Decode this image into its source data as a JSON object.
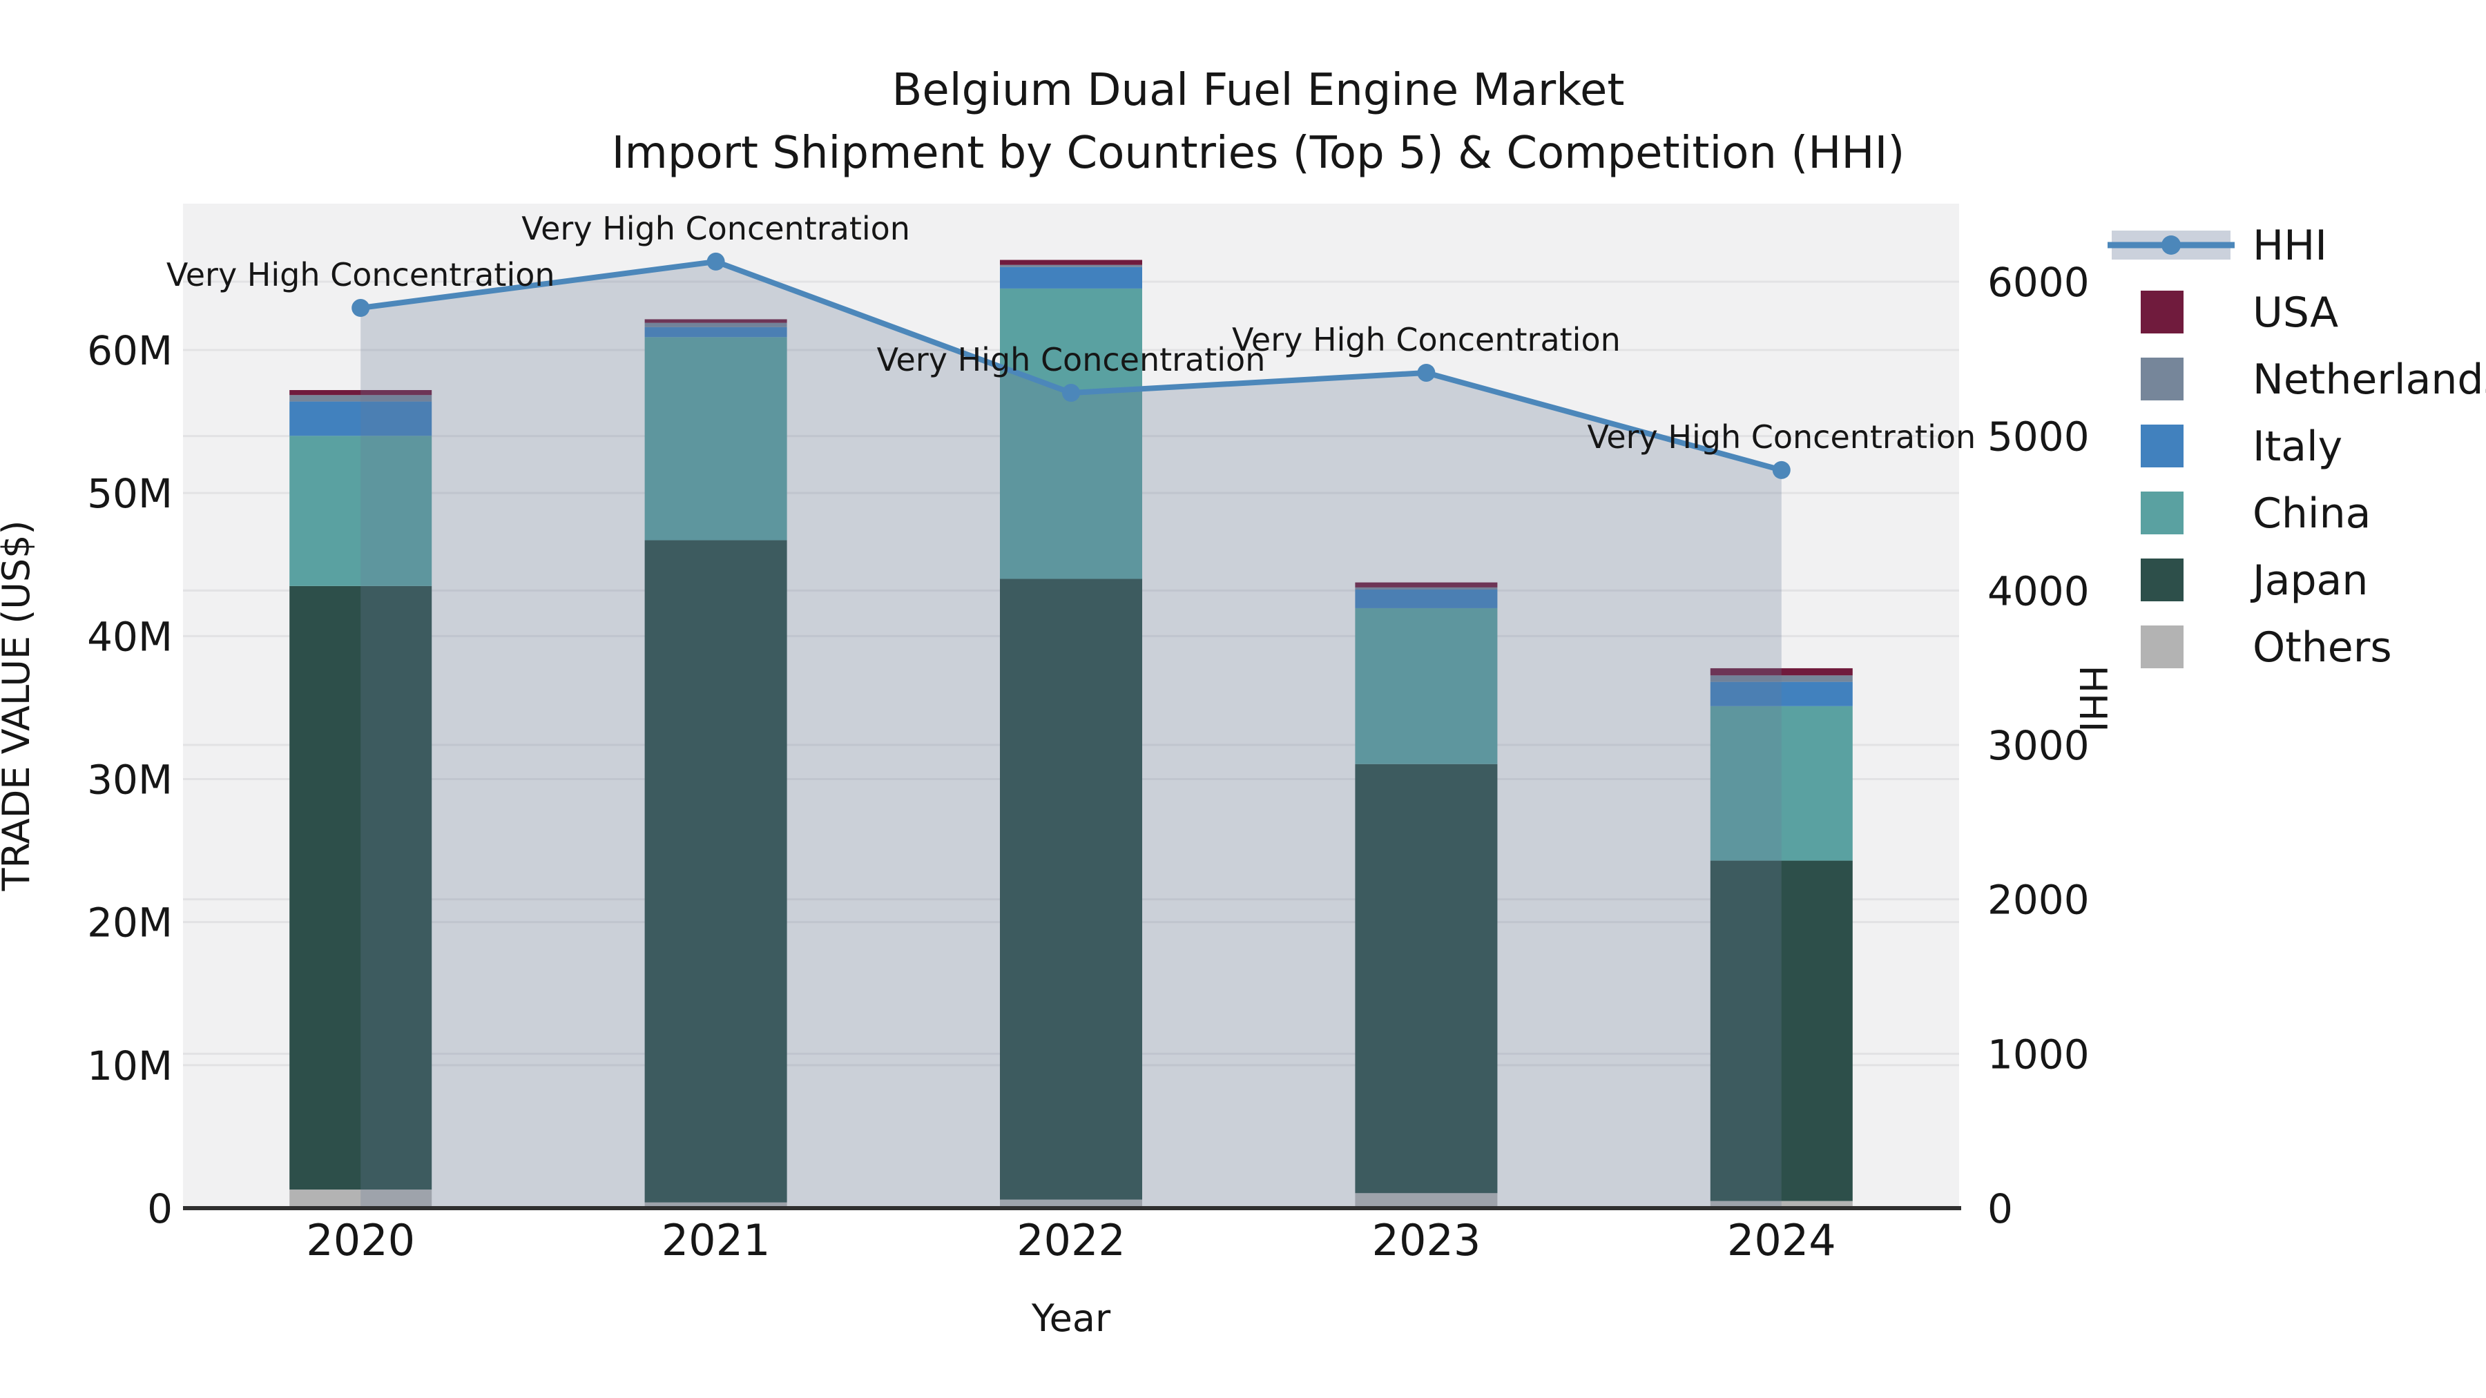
{
  "title": {
    "line1": "Belgium Dual Fuel Engine Market",
    "line2": "Import Shipment by Countries (Top 5) & Competition (HHI)"
  },
  "axes": {
    "y_left_label": "TRADE VALUE (US$)",
    "y_right_label": "HHI",
    "x_label": "Year",
    "y_left_tick_labels": [
      "0",
      "10M",
      "20M",
      "30M",
      "40M",
      "50M",
      "60M"
    ],
    "y_right_tick_labels": [
      "0",
      "1000",
      "2000",
      "3000",
      "4000",
      "5000",
      "6000"
    ],
    "x_tick_labels": [
      "2020",
      "2021",
      "2022",
      "2023",
      "2024"
    ]
  },
  "legend": {
    "items": [
      {
        "label": "HHI",
        "type": "line",
        "color": "#4c87ba"
      },
      {
        "label": "USA",
        "type": "swatch",
        "color": "#701b3d"
      },
      {
        "label": "Netherlands",
        "type": "swatch",
        "color": "#76869a"
      },
      {
        "label": "Italy",
        "type": "swatch",
        "color": "#4181be"
      },
      {
        "label": "China",
        "type": "swatch",
        "color": "#5aa1a1"
      },
      {
        "label": "Japan",
        "type": "swatch",
        "color": "#2d4f4a"
      },
      {
        "label": "Others",
        "type": "swatch",
        "color": "#b3b3b3"
      }
    ]
  },
  "chart_data": {
    "type": "bar",
    "subtype": "stacked-bars-with-line-overlay",
    "title": "Belgium Dual Fuel Engine Market Import Shipment by Countries (Top 5) & Competition (HHI)",
    "xlabel": "Year",
    "ylabel_left": "TRADE VALUE (US$)",
    "ylabel_right": "HHI",
    "categories": [
      "2020",
      "2021",
      "2022",
      "2023",
      "2024"
    ],
    "values_unit": "million US$",
    "series": [
      {
        "name": "Others",
        "color": "#b3b3b3",
        "values": [
          1.3,
          0.4,
          0.6,
          1.05,
          0.5
        ]
      },
      {
        "name": "Japan",
        "color": "#2d4f4a",
        "values": [
          42.2,
          46.3,
          43.4,
          30.0,
          23.8
        ]
      },
      {
        "name": "China",
        "color": "#5aa1a1",
        "values": [
          10.5,
          14.2,
          20.3,
          10.9,
          10.8
        ]
      },
      {
        "name": "Italy",
        "color": "#4181be",
        "values": [
          2.4,
          0.7,
          1.5,
          1.3,
          1.7
        ]
      },
      {
        "name": "Netherlands",
        "color": "#76869a",
        "values": [
          0.45,
          0.3,
          0.15,
          0.15,
          0.45
        ]
      },
      {
        "name": "USA",
        "color": "#701b3d",
        "values": [
          0.35,
          0.25,
          0.35,
          0.35,
          0.5
        ]
      }
    ],
    "line_series": {
      "name": "HHI",
      "color": "#4c87ba",
      "area_fill": "rgba(104,122,152,0.28)",
      "values": [
        5830,
        6130,
        5280,
        5410,
        4780
      ],
      "axis": "right"
    },
    "annotations": [
      "Very High Concentration",
      "Very High Concentration",
      "Very High Concentration",
      "Very High Concentration",
      "Very High Concentration"
    ],
    "y_left_ticks": [
      0,
      10,
      20,
      30,
      40,
      50,
      60
    ],
    "y_left_range_M": [
      0,
      70.2
    ],
    "y_right_ticks": [
      0,
      1000,
      2000,
      3000,
      4000,
      5000,
      6000
    ],
    "y_right_range": [
      0,
      6505
    ],
    "grid": true,
    "legend_position": "outside-right",
    "plot_background": "#f1f1f2"
  }
}
